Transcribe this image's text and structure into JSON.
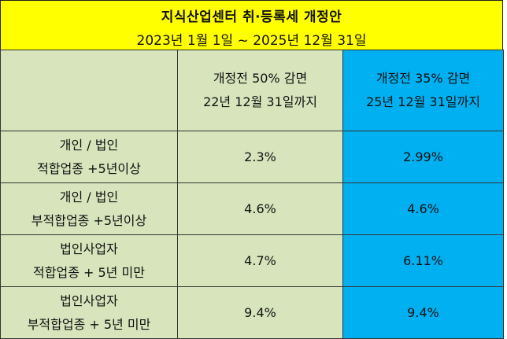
{
  "title": {
    "main": "지식산업센터 취·등록세 개정안",
    "period": "2023년 1월 1일 ~ 2025년 12월 31일"
  },
  "colors": {
    "title_bg": "#ffff00",
    "green_bg": "#d8e4bc",
    "blue_bg": "#00b0f0"
  },
  "header": {
    "before": [
      "개정전 50% 감면",
      "22년 12월 31일까지"
    ],
    "after": [
      "개정전 35% 감면",
      "25년 12월 31일까지"
    ]
  },
  "rows": [
    {
      "label": [
        "개인 / 법인",
        "적합업종 +5년이상"
      ],
      "before": "2.3%",
      "after": "2.99%"
    },
    {
      "label": [
        "개인 / 법인",
        "부적합업종 +5년이상"
      ],
      "before": "4.6%",
      "after": "4.6%"
    },
    {
      "label": [
        "법인사업자",
        "적합업종 + 5년 미만"
      ],
      "before": "4.7%",
      "after": "6.11%"
    },
    {
      "label": [
        "법인사업자",
        "부적합업종 + 5년 미만"
      ],
      "before": "9.4%",
      "after": "9.4%"
    }
  ]
}
